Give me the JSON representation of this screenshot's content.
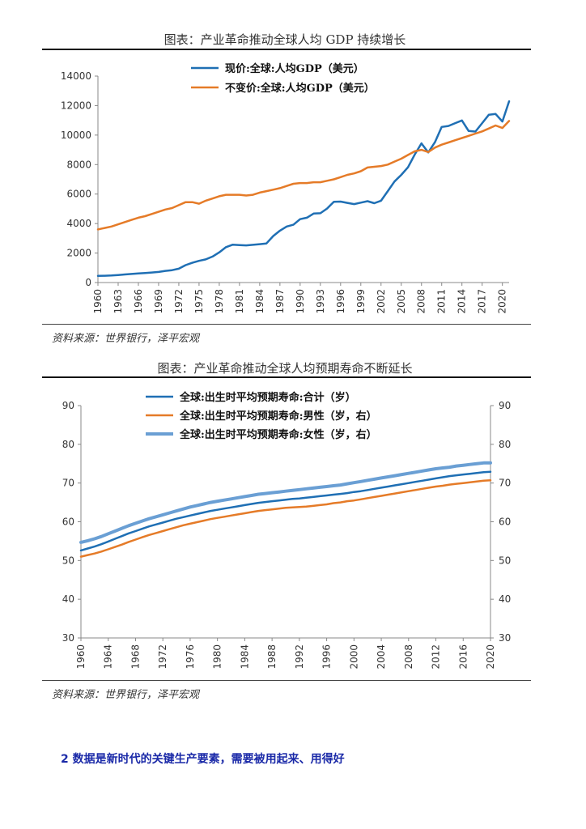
{
  "chart_data": [
    {
      "type": "line",
      "title": "图表：产业革命推动全球人均 GDP 持续增长",
      "source": "资料来源：世界银行，泽平宏观",
      "ylim": [
        0,
        14000
      ],
      "yticks": [
        0,
        2000,
        4000,
        6000,
        8000,
        10000,
        12000,
        14000
      ],
      "xticks": [
        "1960",
        "1963",
        "1966",
        "1969",
        "1972",
        "1975",
        "1978",
        "1981",
        "1984",
        "1987",
        "1990",
        "1993",
        "1996",
        "1999",
        "2002",
        "2005",
        "2008",
        "2011",
        "2014",
        "2017",
        "2020"
      ],
      "x_start": 1960,
      "x_end": 2021,
      "series": [
        {
          "name": "现价:全球:人均GDP（美元）",
          "color": "#1f6fb4",
          "values": [
            450,
            460,
            480,
            510,
            550,
            580,
            620,
            650,
            680,
            720,
            790,
            840,
            940,
            1180,
            1340,
            1470,
            1570,
            1760,
            2050,
            2400,
            2570,
            2540,
            2520,
            2560,
            2600,
            2650,
            3150,
            3520,
            3800,
            3920,
            4300,
            4400,
            4680,
            4700,
            5020,
            5480,
            5490,
            5400,
            5320,
            5420,
            5520,
            5380,
            5550,
            6200,
            6850,
            7300,
            7820,
            8680,
            9440,
            8820,
            9520,
            10550,
            10620,
            10810,
            10990,
            10280,
            10240,
            10810,
            11380,
            11430,
            10920,
            12290
          ]
        },
        {
          "name": "不变价:全球:人均GDP（美元）",
          "color": "#e57b28",
          "values": [
            3600,
            3700,
            3800,
            3950,
            4100,
            4250,
            4400,
            4500,
            4650,
            4800,
            4950,
            5050,
            5250,
            5450,
            5450,
            5350,
            5550,
            5700,
            5850,
            5950,
            5950,
            5950,
            5900,
            5950,
            6100,
            6200,
            6300,
            6400,
            6550,
            6700,
            6750,
            6750,
            6800,
            6800,
            6900,
            7000,
            7150,
            7300,
            7400,
            7550,
            7800,
            7850,
            7900,
            8000,
            8200,
            8400,
            8650,
            8900,
            9000,
            8850,
            9150,
            9350,
            9500,
            9650,
            9800,
            9950,
            10100,
            10250,
            10450,
            10650,
            10480,
            10960
          ]
        }
      ]
    },
    {
      "type": "line",
      "title": "图表：产业革命推动全球人均预期寿命不断延长",
      "source": "资料来源：世界银行，泽平宏观",
      "ylim": [
        30,
        90
      ],
      "yticks": [
        30,
        40,
        50,
        60,
        70,
        80,
        90
      ],
      "xticks": [
        "1960",
        "1964",
        "1968",
        "1972",
        "1976",
        "1980",
        "1984",
        "1988",
        "1992",
        "1996",
        "2000",
        "2004",
        "2008",
        "2012",
        "2016",
        "2020"
      ],
      "x_start": 1960,
      "x_end": 2020,
      "series": [
        {
          "name": "全球:出生时平均预期寿命:合计（岁）",
          "color": "#1f6fb4",
          "values": [
            52.6,
            53.1,
            53.6,
            54.2,
            54.9,
            55.6,
            56.3,
            57.0,
            57.6,
            58.2,
            58.8,
            59.3,
            59.8,
            60.3,
            60.8,
            61.2,
            61.6,
            62.0,
            62.4,
            62.8,
            63.1,
            63.4,
            63.7,
            64.0,
            64.3,
            64.6,
            64.9,
            65.1,
            65.3,
            65.5,
            65.7,
            65.9,
            66.0,
            66.2,
            66.4,
            66.6,
            66.8,
            67.0,
            67.2,
            67.4,
            67.7,
            67.9,
            68.2,
            68.5,
            68.8,
            69.1,
            69.4,
            69.7,
            70.0,
            70.3,
            70.6,
            70.9,
            71.2,
            71.5,
            71.8,
            72.0,
            72.2,
            72.4,
            72.6,
            72.8,
            72.9
          ]
        },
        {
          "name": "全球:出生时平均预期寿命:男性（岁，右）",
          "color": "#e57b28",
          "values": [
            51.0,
            51.4,
            51.8,
            52.3,
            52.9,
            53.5,
            54.1,
            54.8,
            55.4,
            56.0,
            56.6,
            57.1,
            57.6,
            58.1,
            58.6,
            59.1,
            59.5,
            59.9,
            60.3,
            60.7,
            61.0,
            61.3,
            61.6,
            61.9,
            62.2,
            62.5,
            62.8,
            63.0,
            63.2,
            63.4,
            63.6,
            63.7,
            63.8,
            63.9,
            64.1,
            64.3,
            64.5,
            64.8,
            65.0,
            65.3,
            65.5,
            65.8,
            66.1,
            66.4,
            66.7,
            67.0,
            67.3,
            67.6,
            67.9,
            68.2,
            68.5,
            68.8,
            69.1,
            69.3,
            69.6,
            69.8,
            70.0,
            70.2,
            70.4,
            70.6,
            70.7
          ]
        },
        {
          "name": "全球:出生时平均预期寿命:女性（岁，右）",
          "color": "#6a9fd4",
          "values": [
            54.7,
            55.1,
            55.6,
            56.2,
            56.9,
            57.6,
            58.3,
            59.0,
            59.6,
            60.2,
            60.8,
            61.3,
            61.8,
            62.3,
            62.8,
            63.3,
            63.8,
            64.2,
            64.6,
            65.0,
            65.3,
            65.6,
            65.9,
            66.2,
            66.5,
            66.8,
            67.1,
            67.3,
            67.5,
            67.7,
            67.9,
            68.1,
            68.3,
            68.5,
            68.7,
            68.9,
            69.1,
            69.3,
            69.5,
            69.8,
            70.1,
            70.4,
            70.7,
            71.0,
            71.3,
            71.6,
            71.9,
            72.2,
            72.5,
            72.8,
            73.1,
            73.4,
            73.7,
            73.9,
            74.1,
            74.4,
            74.6,
            74.8,
            75.0,
            75.2,
            75.2
          ]
        }
      ]
    }
  ],
  "section_heading": "2 数据是新时代的关键生产要素，需要被用起来、用得好"
}
